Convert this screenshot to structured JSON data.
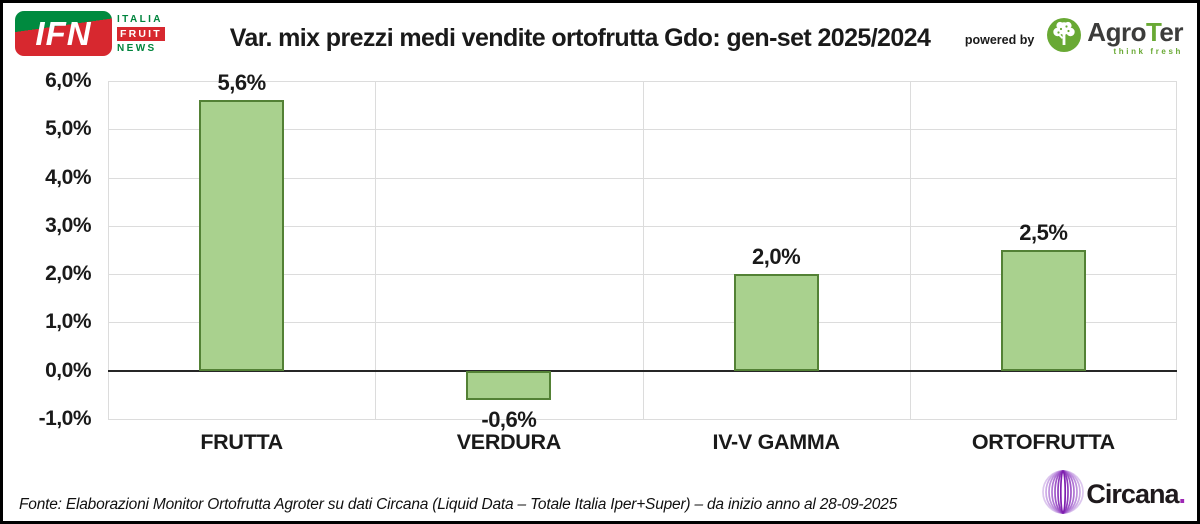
{
  "header": {
    "ifn": {
      "abbr": "IFN",
      "line1": "ITALIA",
      "line2": "FRUIT",
      "line3": "NEWS"
    },
    "title": "Var. mix prezzi medi vendite ortofrutta Gdo: gen-set 2025/2024",
    "powered_by": "powered by",
    "agroter": {
      "part1": "Agro",
      "part2": "T",
      "part3": "er",
      "tagline": "think fresh"
    }
  },
  "chart_data": {
    "type": "bar",
    "title": "Var. mix prezzi medi vendite ortofrutta Gdo: gen-set 2025/2024",
    "categories": [
      "FRUTTA",
      "VERDURA",
      "IV-V GAMMA",
      "ORTOFRUTTA"
    ],
    "values": [
      5.6,
      -0.6,
      2.0,
      2.5
    ],
    "data_labels": [
      "5,6%",
      "-0,6%",
      "2,0%",
      "2,5%"
    ],
    "y_ticks": [
      {
        "value": 6,
        "label": "6,0%"
      },
      {
        "value": 5,
        "label": "5,0%"
      },
      {
        "value": 4,
        "label": "4,0%"
      },
      {
        "value": 3,
        "label": "3,0%"
      },
      {
        "value": 2,
        "label": "2,0%"
      },
      {
        "value": 1,
        "label": "1,0%"
      },
      {
        "value": 0,
        "label": "0,0%"
      },
      {
        "value": -1,
        "label": "-1,0%"
      }
    ],
    "ylim": [
      -1,
      6
    ],
    "grid": true,
    "legend": false,
    "bar_color": "#A9D18E",
    "bar_border_color": "#538135",
    "gridline_color": "#DCDCDC"
  },
  "footer": {
    "source": "Fonte: Elaborazioni Monitor Ortofrutta Agroter su dati Circana (Liquid Data – Totale Italia Iper+Super) –  da inizio anno al 28-09-2025",
    "circana_name": "Circana",
    "circana_dot": "."
  }
}
